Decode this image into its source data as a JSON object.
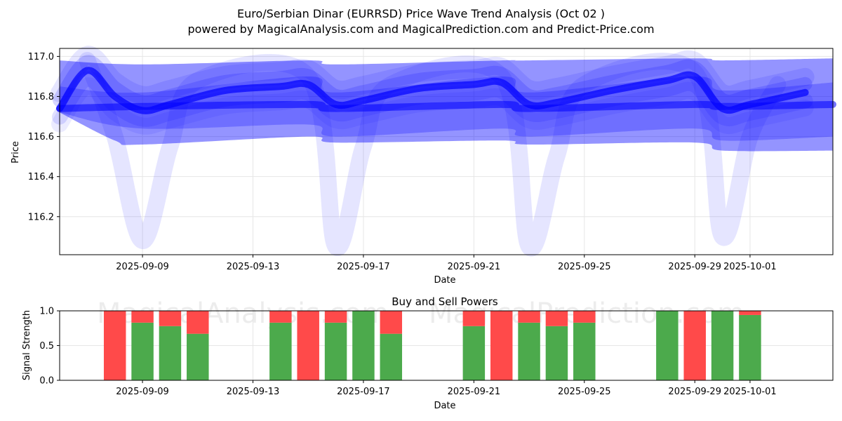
{
  "title": "Euro/Serbian Dinar (EURRSD) Price Wave Trend Analysis (Oct 02 )",
  "subtitle": "powered by MagicalAnalysis.com and MagicalPrediction.com and Predict-Price.com",
  "watermarks": [
    "MagicalAnalysis.com",
    "MagicalPrediction.com"
  ],
  "colors": {
    "wave": "#0000ff",
    "buy": "#4caa4c",
    "sell": "#ff4a4a"
  },
  "chart_data": [
    {
      "type": "line",
      "xlabel": "Date",
      "ylabel": "Price",
      "xlim": [
        "2025-09-06",
        "2025-10-04"
      ],
      "ylim": [
        116.01,
        117.04
      ],
      "x_ticks": [
        "2025-09-09",
        "2025-09-13",
        "2025-09-17",
        "2025-09-21",
        "2025-09-25",
        "2025-09-29",
        "2025-10-01"
      ],
      "y_ticks": [
        116.2,
        116.4,
        116.6,
        116.8,
        117.0
      ],
      "grid": true,
      "series": [
        {
          "role": "upper-band",
          "x": [
            "2025-09-06",
            "2025-09-09",
            "2025-09-15",
            "2025-09-16",
            "2025-09-22",
            "2025-09-23",
            "2025-09-29",
            "2025-09-30",
            "2025-10-04"
          ],
          "y": [
            116.98,
            116.96,
            116.98,
            116.96,
            116.98,
            116.98,
            116.99,
            116.98,
            116.99
          ]
        },
        {
          "role": "lower-band",
          "x": [
            "2025-09-06",
            "2025-09-08",
            "2025-09-09",
            "2025-09-15",
            "2025-09-16",
            "2025-09-22",
            "2025-09-23",
            "2025-09-29",
            "2025-09-30",
            "2025-10-04"
          ],
          "y": [
            116.72,
            116.58,
            116.56,
            116.6,
            116.57,
            116.58,
            116.56,
            116.57,
            116.53,
            116.53
          ]
        },
        {
          "role": "inner-band-upper",
          "x": [
            "2025-09-06",
            "2025-09-09",
            "2025-09-15",
            "2025-09-16",
            "2025-09-22",
            "2025-09-23",
            "2025-09-29",
            "2025-09-30",
            "2025-10-04"
          ],
          "y": [
            116.85,
            116.82,
            116.9,
            116.82,
            116.9,
            116.82,
            116.9,
            116.83,
            116.87
          ]
        },
        {
          "role": "inner-band-lower",
          "x": [
            "2025-09-06",
            "2025-09-09",
            "2025-09-15",
            "2025-09-16",
            "2025-09-22",
            "2025-09-23",
            "2025-09-29",
            "2025-09-30",
            "2025-10-04"
          ],
          "y": [
            116.72,
            116.64,
            116.66,
            116.6,
            116.64,
            116.6,
            116.64,
            116.58,
            116.6
          ]
        },
        {
          "role": "main-wave",
          "x": [
            "2025-09-06",
            "2025-09-07",
            "2025-09-08",
            "2025-09-09",
            "2025-09-10",
            "2025-09-12",
            "2025-09-14",
            "2025-09-15",
            "2025-09-16",
            "2025-09-17",
            "2025-09-19",
            "2025-09-21",
            "2025-09-22",
            "2025-09-23",
            "2025-09-24",
            "2025-09-26",
            "2025-09-28",
            "2025-09-29",
            "2025-09-30",
            "2025-10-01",
            "2025-10-03"
          ],
          "y": [
            116.74,
            116.93,
            116.8,
            116.73,
            116.76,
            116.83,
            116.85,
            116.86,
            116.76,
            116.78,
            116.84,
            116.86,
            116.87,
            116.76,
            116.77,
            116.83,
            116.88,
            116.9,
            116.74,
            116.76,
            116.82
          ]
        },
        {
          "role": "flat-wave",
          "x": [
            "2025-09-06",
            "2025-09-09",
            "2025-09-15",
            "2025-09-16",
            "2025-09-22",
            "2025-09-23",
            "2025-09-29",
            "2025-09-30",
            "2025-10-04"
          ],
          "y": [
            116.74,
            116.75,
            116.76,
            116.74,
            116.76,
            116.74,
            116.76,
            116.75,
            116.76
          ]
        },
        {
          "role": "dip-wave",
          "x": [
            "2025-09-07",
            "2025-09-08",
            "2025-09-09",
            "2025-09-10",
            "2025-09-11",
            "2025-09-15",
            "2025-09-16",
            "2025-09-17",
            "2025-09-18",
            "2025-09-22",
            "2025-09-23",
            "2025-09-24",
            "2025-09-25",
            "2025-09-29",
            "2025-09-30",
            "2025-10-01",
            "2025-10-02"
          ],
          "y": [
            116.98,
            116.6,
            116.08,
            116.55,
            116.88,
            116.9,
            116.05,
            116.55,
            116.86,
            116.9,
            116.05,
            116.5,
            116.86,
            116.92,
            116.1,
            116.6,
            116.86
          ]
        }
      ]
    },
    {
      "type": "bar",
      "title": "Buy and Sell Powers",
      "xlabel": "Date",
      "ylabel": "Signal Strength",
      "xlim": [
        "2025-09-06",
        "2025-10-04"
      ],
      "ylim": [
        0,
        1.0
      ],
      "x_ticks": [
        "2025-09-09",
        "2025-09-13",
        "2025-09-17",
        "2025-09-21",
        "2025-09-25",
        "2025-09-29",
        "2025-10-01"
      ],
      "y_ticks": [
        "0.0",
        "0.5",
        "1.0"
      ],
      "grid": true,
      "categories": [
        "2025-09-08",
        "2025-09-09",
        "2025-09-10",
        "2025-09-11",
        "2025-09-14",
        "2025-09-15",
        "2025-09-16",
        "2025-09-17",
        "2025-09-18",
        "2025-09-21",
        "2025-09-22",
        "2025-09-23",
        "2025-09-24",
        "2025-09-25",
        "2025-09-28",
        "2025-09-29",
        "2025-09-30",
        "2025-10-01"
      ],
      "series": [
        {
          "name": "Buy",
          "values": [
            0.0,
            0.83,
            0.78,
            0.67,
            0.83,
            0.0,
            0.83,
            1.0,
            0.67,
            0.78,
            0.0,
            0.83,
            0.78,
            0.83,
            1.0,
            0.0,
            1.0,
            0.94
          ]
        },
        {
          "name": "Sell",
          "values": [
            1.0,
            0.17,
            0.22,
            0.33,
            0.17,
            1.0,
            0.17,
            0.0,
            0.33,
            0.22,
            1.0,
            0.17,
            0.22,
            0.17,
            0.0,
            1.0,
            0.0,
            0.06
          ]
        }
      ]
    }
  ]
}
